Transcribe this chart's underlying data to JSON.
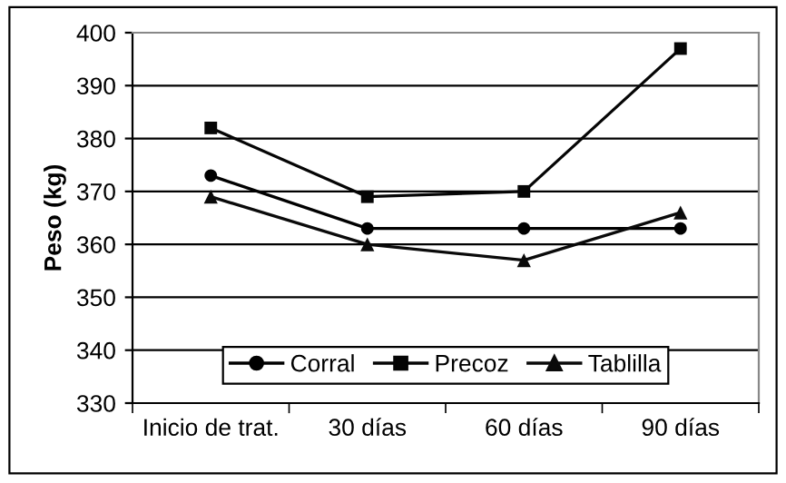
{
  "chart_data": {
    "type": "line",
    "ylabel": "Peso (kg)",
    "categories": [
      "Inicio de trat.",
      "30 días",
      "60 días",
      "90 días"
    ],
    "series": [
      {
        "name": "Corral",
        "color": "#000000",
        "marker": "circle",
        "values": [
          373,
          363,
          363,
          363
        ]
      },
      {
        "name": "Precoz",
        "color": "#050505",
        "marker": "square",
        "values": [
          382,
          369,
          370,
          397
        ]
      },
      {
        "name": "Tablilla",
        "color": "#0a0a0a",
        "marker": "triangle",
        "values": [
          369,
          360,
          357,
          366
        ]
      }
    ],
    "ylim": [
      330,
      400
    ],
    "yticks": [
      330,
      340,
      350,
      360,
      370,
      380,
      390,
      400
    ],
    "grid": "y",
    "legend": "bottom",
    "line_style": "solid"
  }
}
